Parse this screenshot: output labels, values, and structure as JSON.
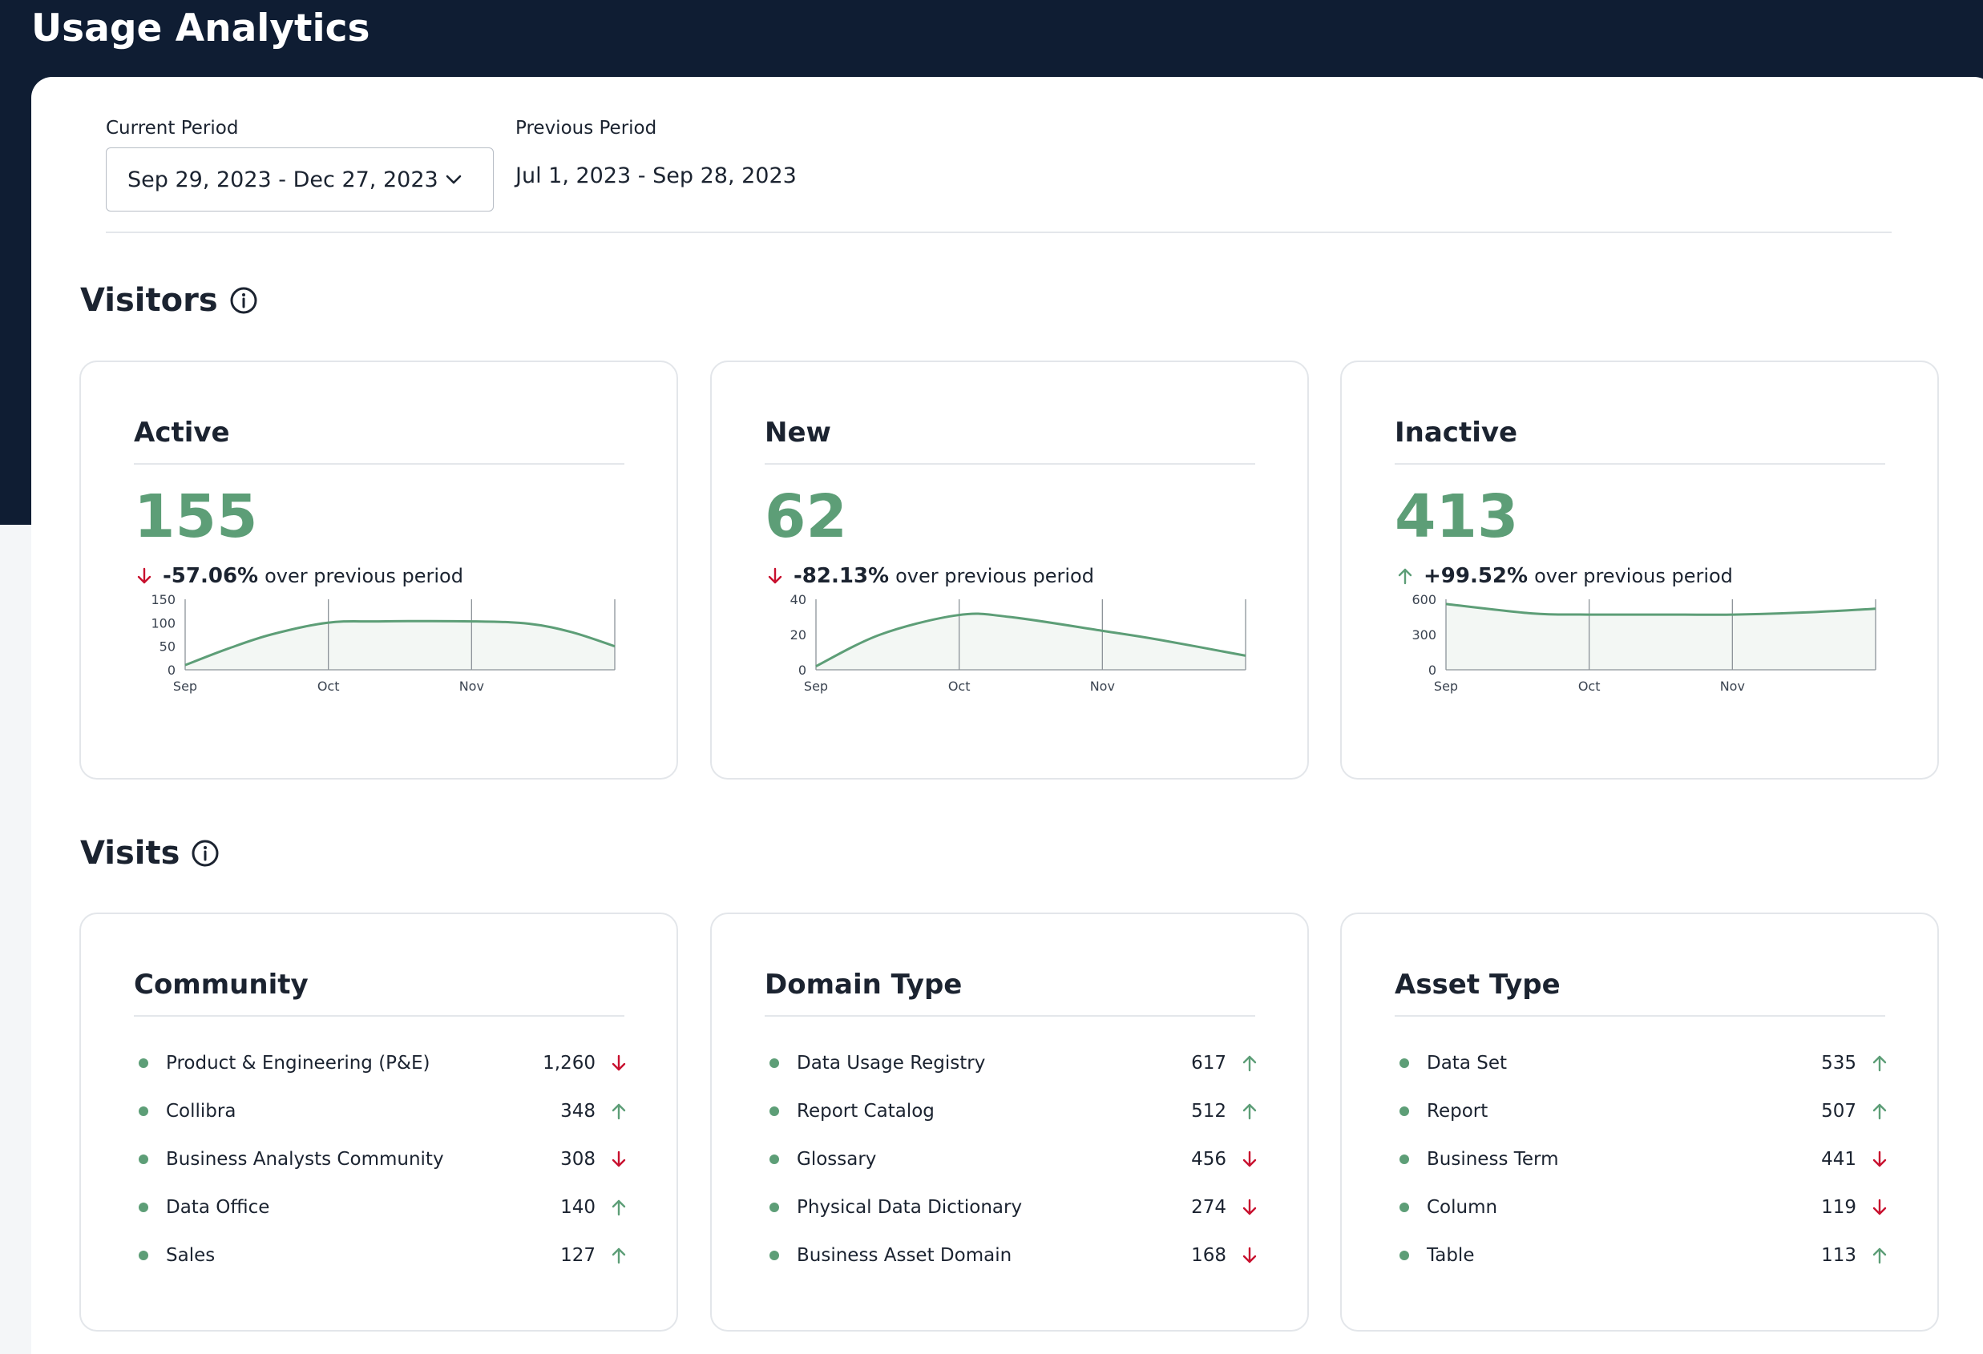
{
  "header": {
    "title": "Usage Analytics"
  },
  "period": {
    "current_label": "Current Period",
    "current_value": "Sep 29, 2023 - Dec 27, 2023",
    "previous_label": "Previous Period",
    "previous_value": "Jul 1, 2023 - Sep 28, 2023"
  },
  "colors": {
    "positive": "#5d9e77",
    "down_arrow": "#c8102e",
    "up_arrow": "#5d9e77",
    "header_bg": "#0f1d33"
  },
  "visitors": {
    "title": "Visitors",
    "cards": [
      {
        "title": "Active",
        "value": "155",
        "trend": "down",
        "change": "-57.06%",
        "suffix": "over previous period"
      },
      {
        "title": "New",
        "value": "62",
        "trend": "down",
        "change": "-82.13%",
        "suffix": "over previous period"
      },
      {
        "title": "Inactive",
        "value": "413",
        "trend": "up",
        "change": "+99.52%",
        "suffix": "over previous period"
      }
    ]
  },
  "chart_data": [
    {
      "type": "area",
      "x_ticks": [
        "Sep",
        "Oct",
        "Nov"
      ],
      "y_ticks": [
        "150",
        "100",
        "50",
        "0"
      ],
      "ylim": [
        0,
        150
      ],
      "x": [
        0,
        0.1,
        0.2,
        0.33,
        0.45,
        0.67,
        0.8,
        0.9,
        1.0
      ],
      "values": [
        10,
        45,
        75,
        100,
        103,
        103,
        98,
        80,
        50
      ]
    },
    {
      "type": "area",
      "x_ticks": [
        "Sep",
        "Oct",
        "Nov"
      ],
      "y_ticks": [
        "40",
        "20",
        "0"
      ],
      "ylim": [
        0,
        40
      ],
      "x": [
        0,
        0.15,
        0.33,
        0.45,
        0.67,
        0.8,
        1.0
      ],
      "values": [
        2,
        20,
        31,
        30,
        22,
        17,
        8
      ]
    },
    {
      "type": "area",
      "x_ticks": [
        "Sep",
        "Oct",
        "Nov"
      ],
      "y_ticks": [
        "600",
        "300",
        "0"
      ],
      "ylim": [
        0,
        600
      ],
      "x": [
        0,
        0.2,
        0.33,
        0.5,
        0.67,
        0.85,
        1.0
      ],
      "values": [
        560,
        480,
        470,
        470,
        470,
        490,
        520
      ]
    }
  ],
  "visits": {
    "title": "Visits",
    "cards": [
      {
        "title": "Community",
        "items": [
          {
            "label": "Product & Engineering (P&E)",
            "count": "1,260",
            "trend": "down"
          },
          {
            "label": "Collibra",
            "count": "348",
            "trend": "up"
          },
          {
            "label": "Business Analysts Community",
            "count": "308",
            "trend": "down"
          },
          {
            "label": "Data Office",
            "count": "140",
            "trend": "up"
          },
          {
            "label": "Sales",
            "count": "127",
            "trend": "up"
          }
        ]
      },
      {
        "title": "Domain Type",
        "items": [
          {
            "label": "Data Usage Registry",
            "count": "617",
            "trend": "up"
          },
          {
            "label": "Report Catalog",
            "count": "512",
            "trend": "up"
          },
          {
            "label": "Glossary",
            "count": "456",
            "trend": "down"
          },
          {
            "label": "Physical Data Dictionary",
            "count": "274",
            "trend": "down"
          },
          {
            "label": "Business Asset Domain",
            "count": "168",
            "trend": "down"
          }
        ]
      },
      {
        "title": "Asset Type",
        "items": [
          {
            "label": "Data Set",
            "count": "535",
            "trend": "up"
          },
          {
            "label": "Report",
            "count": "507",
            "trend": "up"
          },
          {
            "label": "Business Term",
            "count": "441",
            "trend": "down"
          },
          {
            "label": "Column",
            "count": "119",
            "trend": "down"
          },
          {
            "label": "Table",
            "count": "113",
            "trend": "up"
          }
        ]
      }
    ]
  }
}
